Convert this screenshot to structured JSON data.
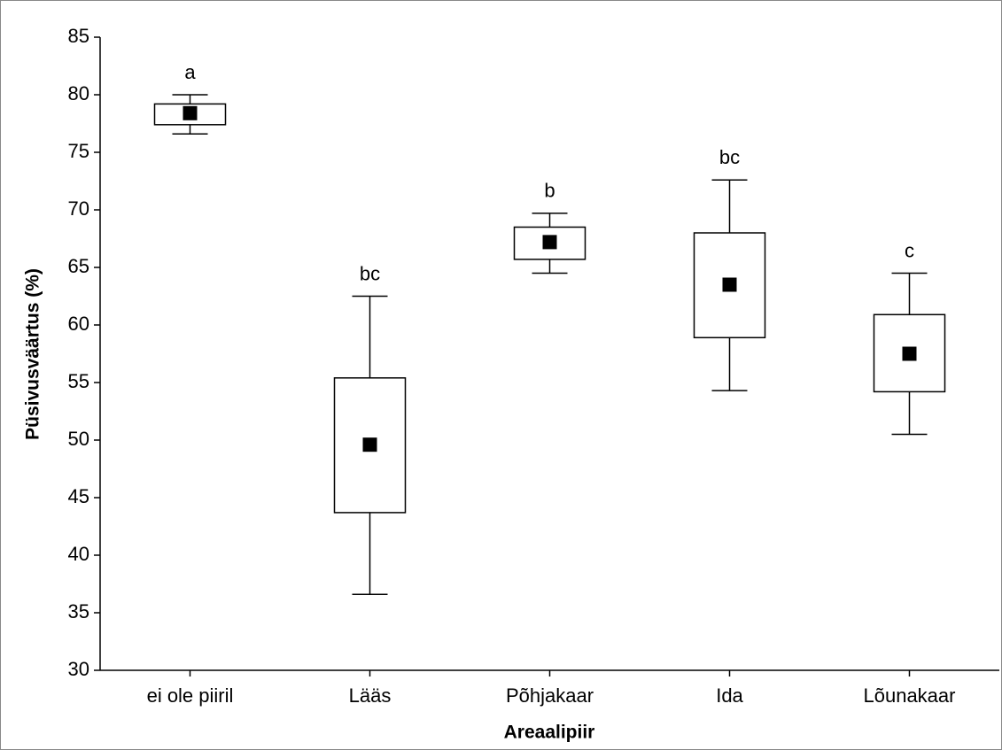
{
  "chart_data": {
    "type": "box",
    "xlabel": "Areaalipiir",
    "ylabel": "Püsivusväärtus (%)",
    "categories": [
      "ei ole piiril",
      "Lääs",
      "Põhjakaar",
      "Ida",
      "Lõunakaar"
    ],
    "whisker_high": [
      80.0,
      62.5,
      69.7,
      72.6,
      64.5
    ],
    "q3": [
      79.2,
      55.4,
      68.5,
      68.0,
      60.9
    ],
    "mean": [
      78.4,
      49.6,
      67.2,
      63.5,
      57.5
    ],
    "q1": [
      77.4,
      43.7,
      65.7,
      58.9,
      54.2
    ],
    "whisker_low": [
      76.6,
      36.6,
      64.5,
      54.3,
      50.5
    ],
    "annotations": [
      "a",
      "bc",
      "b",
      "bc",
      "c"
    ],
    "color": "#000000",
    "ylim": [
      30,
      85
    ],
    "yticks": [
      30,
      35,
      40,
      45,
      50,
      55,
      60,
      65,
      70,
      75,
      80,
      85
    ],
    "grid": false
  }
}
